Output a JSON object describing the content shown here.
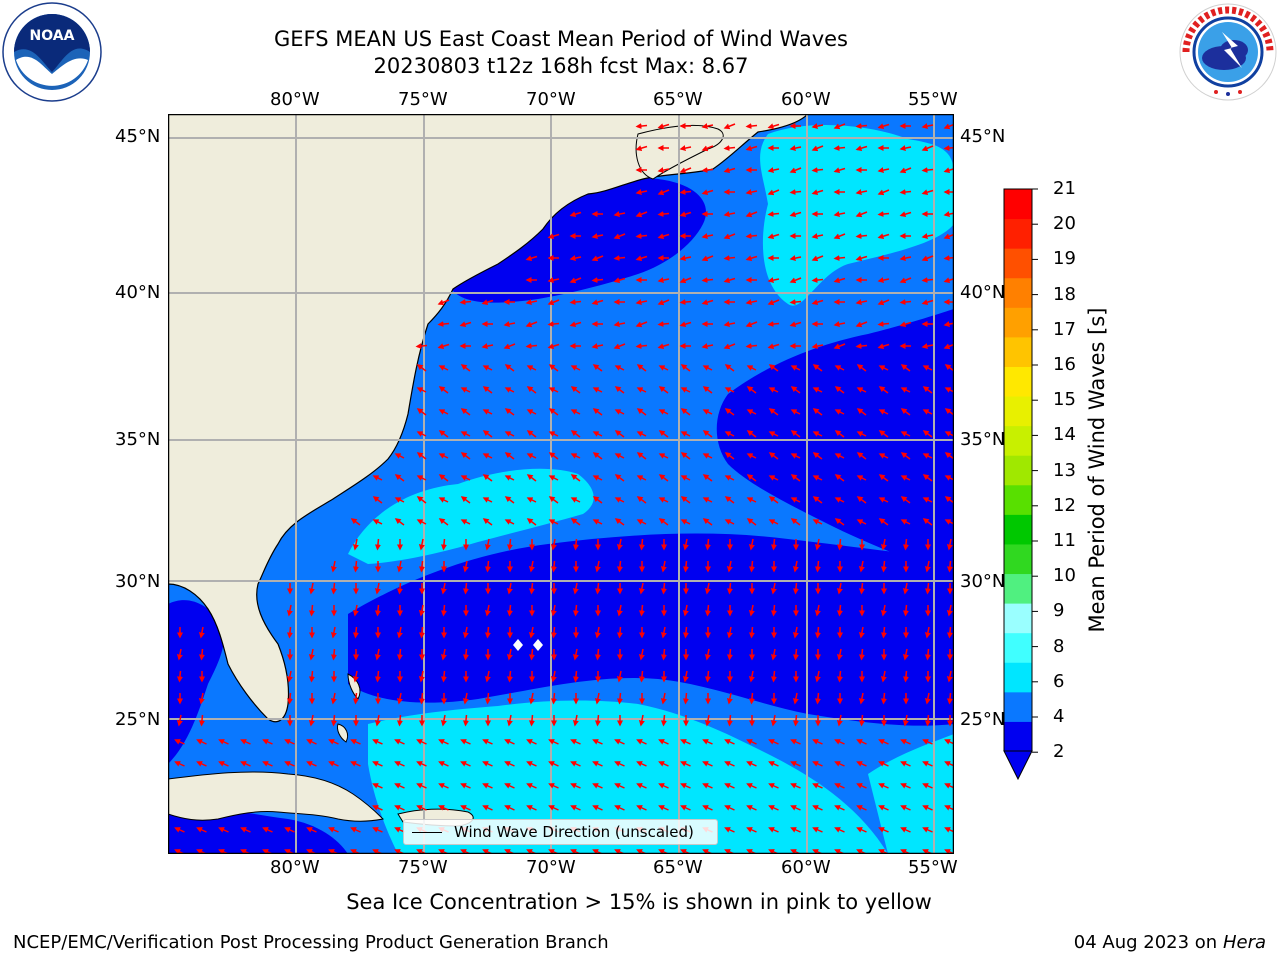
{
  "header": {
    "title": "GEFS MEAN US East Coast Mean Period of Wind Waves",
    "subtitle": "20230803 t12z 168h fcst   Max: 8.67"
  },
  "logos": {
    "left": {
      "text": "NOAA",
      "ring_text": "NATIONAL OCEANIC AND ATMOSPHERIC ADMINISTRATION · U.S. DEPARTMENT OF COMMERCE"
    },
    "right": {
      "ring_text": "NATIONAL WEATHER SERVICE"
    }
  },
  "map": {
    "lon_labels": [
      "80°W",
      "75°W",
      "70°W",
      "65°W",
      "60°W",
      "55°W"
    ],
    "lat_labels": [
      "45°N",
      "40°N",
      "35°N",
      "30°N",
      "25°N"
    ],
    "legend": "Wind Wave Direction (unscaled)",
    "colors": {
      "land": "#efeddc",
      "coast": "#000000",
      "grid": "#b0b0b0",
      "arrow": "#ff0000"
    }
  },
  "colorbar": {
    "label": "Mean Period of Wind Waves [s]",
    "ticks": [
      "21",
      "20",
      "19",
      "18",
      "17",
      "16",
      "15",
      "14",
      "13",
      "12",
      "11",
      "10",
      "9",
      "8",
      "6",
      "4",
      "2"
    ],
    "colors": [
      "#0000f0",
      "#0a78ff",
      "#00e6ff",
      "#40ffff",
      "#9affff",
      "#50f080",
      "#30d820",
      "#00c800",
      "#58e000",
      "#a0e800",
      "#c8f000",
      "#e8f000",
      "#ffe800",
      "#ffc400",
      "#ffa000",
      "#ff8000",
      "#ff5000",
      "#ff2000",
      "#ff0000"
    ],
    "under_color": "#0000f0"
  },
  "chart_data": {
    "type": "heatmap",
    "title": "GEFS MEAN US East Coast Mean Period of Wind Waves",
    "subtitle": "20230803 t12z 168h fcst   Max: 8.67",
    "x_ticks": [
      "80°W",
      "75°W",
      "70°W",
      "65°W",
      "60°W",
      "55°W"
    ],
    "y_ticks": [
      "45°N",
      "40°N",
      "35°N",
      "30°N",
      "25°N"
    ],
    "xlim": [
      -85,
      -54.3
    ],
    "ylim": [
      20.5,
      46
    ],
    "colorbar_label": "Mean Period of Wind Waves [s]",
    "colorbar_levels": [
      2,
      4,
      6,
      8,
      9,
      10,
      11,
      12,
      13,
      14,
      15,
      16,
      17,
      18,
      19,
      20,
      21
    ],
    "max": 8.67,
    "legend": "Wind Wave Direction (unscaled)"
  },
  "footer": {
    "note": "Sea Ice Concentration > 15% is shown in pink to yellow",
    "left": "NCEP/EMC/Verification Post Processing Product Generation Branch",
    "right_date": "04 Aug 2023 on",
    "right_host": "Hera"
  }
}
